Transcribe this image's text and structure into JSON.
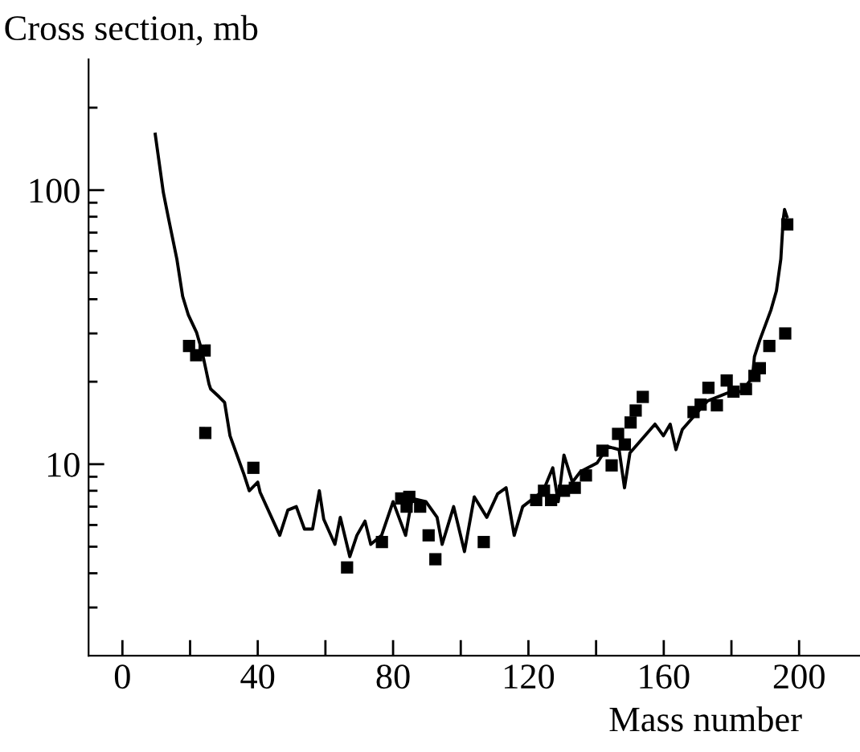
{
  "chart_data": {
    "type": "line",
    "xlabel": "Mass number",
    "ylabel": "Cross section, mb",
    "log": "y",
    "grid": false,
    "xlim": [
      -10,
      218
    ],
    "ylim": [
      2,
      300
    ],
    "xticks": [
      0,
      {
        "value": 20,
        "label": null
      },
      40,
      {
        "value": 60,
        "label": null
      },
      80,
      {
        "value": 100,
        "label": null
      },
      120,
      {
        "value": 140,
        "label": null
      },
      160,
      {
        "value": 180,
        "label": null
      },
      200
    ],
    "yticks": [
      {
        "value": 3,
        "label": null
      },
      {
        "value": 4,
        "label": null
      },
      {
        "value": 5,
        "label": null
      },
      {
        "value": 6,
        "label": null
      },
      {
        "value": 7,
        "label": null
      },
      {
        "value": 8,
        "label": null
      },
      {
        "value": 9,
        "label": null
      },
      10,
      {
        "value": 20,
        "label": null
      },
      {
        "value": 30,
        "label": null
      },
      {
        "value": 40,
        "label": null
      },
      {
        "value": 50,
        "label": null
      },
      {
        "value": 60,
        "label": null
      },
      {
        "value": 70,
        "label": null
      },
      {
        "value": 80,
        "label": null
      },
      {
        "value": 90,
        "label": null
      },
      100,
      {
        "value": 200,
        "label": null
      }
    ],
    "series": [
      {
        "color": "#000000",
        "marker": "none",
        "line_style": "solid",
        "x": [
          9.7,
          12.1,
          13.7,
          16.1,
          17.8,
          19.5,
          21.9,
          23.5,
          25.6,
          26.1,
          28.6,
          30.2,
          31.8,
          35.9,
          37.5,
          40,
          40.7,
          46.5,
          48.9,
          51.4,
          53.8,
          56.2,
          58.2,
          59.5,
          62.8,
          64.4,
          67.2,
          69.3,
          71.7,
          73.4,
          76.6,
          80,
          83.7,
          85.6,
          89.7,
          93,
          94.5,
          97.9,
          101.1,
          104,
          107.7,
          110.9,
          113.4,
          115.8,
          118.3,
          124.4,
          127.2,
          128.8,
          130.5,
          133,
          135.4,
          140.3,
          143.5,
          146.8,
          148.4,
          150,
          157.4,
          159.9,
          161.9,
          163.6,
          165.5,
          169.6,
          172.9,
          179.8,
          183,
          186.2,
          186.8,
          188.4,
          191.7,
          193.3,
          194.6,
          195.3,
          195.7,
          196.4
        ],
        "values": [
          160,
          98,
          78,
          56,
          41,
          35,
          30.3,
          25.9,
          19.6,
          18.8,
          17.6,
          16.8,
          12.7,
          9.2,
          8.0,
          8.6,
          7.9,
          5.5,
          6.8,
          7.0,
          5.8,
          5.8,
          8.0,
          6.3,
          5.1,
          6.4,
          4.6,
          5.5,
          6.2,
          5.1,
          5.5,
          7.3,
          5.5,
          7.5,
          7.3,
          6.4,
          5.1,
          7.0,
          4.8,
          7.6,
          6.4,
          7.8,
          8.2,
          5.5,
          7.0,
          8.0,
          9.7,
          7.3,
          10.8,
          8.6,
          9.4,
          10.1,
          11.6,
          11.3,
          8.2,
          11.0,
          14.0,
          12.7,
          14.0,
          11.3,
          13.4,
          15.3,
          17,
          18.4,
          18.4,
          20.7,
          24.7,
          28.4,
          36.6,
          42.9,
          56,
          78,
          85,
          80
        ]
      },
      {
        "type": "scatter",
        "color": "#000000",
        "marker": "square",
        "x": [
          19.7,
          21.8,
          24.3,
          24.5,
          38.7,
          66.4,
          76.7,
          82.4,
          84.8,
          84.0,
          88,
          90.5,
          92.5,
          106.8,
          122.3,
          124.6,
          126.7,
          130.5,
          133.7,
          137,
          141.9,
          144.6,
          146.5,
          148.5,
          150.2,
          151.7,
          153.8,
          168.8,
          170.9,
          173.2,
          175.7,
          178.6,
          180.6,
          184.3,
          186.8,
          188.4,
          191.2,
          195.9,
          196.5
        ],
        "values": [
          27,
          25,
          26,
          13,
          9.7,
          4.2,
          5.2,
          7.5,
          7.6,
          7.0,
          7.0,
          5.5,
          4.5,
          5.2,
          7.4,
          8.0,
          7.4,
          8.0,
          8.2,
          9.1,
          11.2,
          9.9,
          12.9,
          11.8,
          14.2,
          15.7,
          17.6,
          15.5,
          16.5,
          19.0,
          16.4,
          20.2,
          18.4,
          18.8,
          21,
          22.4,
          27,
          30,
          75
        ]
      }
    ]
  }
}
